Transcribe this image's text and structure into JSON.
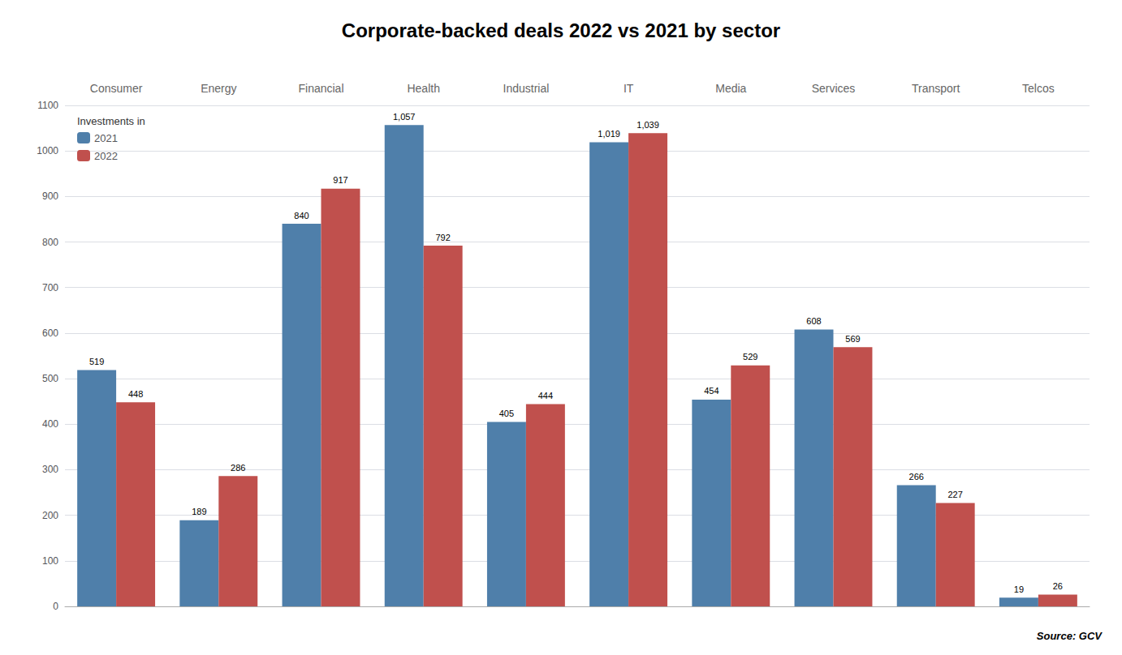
{
  "chart_data": {
    "type": "bar",
    "title": "Corporate-backed deals 2022 vs 2021 by sector",
    "categories": [
      "Consumer",
      "Energy",
      "Financial",
      "Health",
      "Industrial",
      "IT",
      "Media",
      "Services",
      "Transport",
      "Telcos"
    ],
    "series": [
      {
        "name": "2021",
        "color": "#4f7faa",
        "values": [
          519,
          189,
          840,
          1057,
          405,
          1019,
          454,
          608,
          266,
          19
        ],
        "value_labels": [
          "519",
          "189",
          "840",
          "1,057",
          "405",
          "1,019",
          "454",
          "608",
          "266",
          "19"
        ]
      },
      {
        "name": "2022",
        "color": "#c0504d",
        "values": [
          448,
          286,
          917,
          792,
          444,
          1039,
          529,
          569,
          227,
          26
        ],
        "value_labels": [
          "448",
          "286",
          "917",
          "792",
          "444",
          "1,039",
          "529",
          "569",
          "227",
          "26"
        ]
      }
    ],
    "ylim": [
      0,
      1100
    ],
    "yticks": [
      0,
      100,
      200,
      300,
      400,
      500,
      600,
      700,
      800,
      900,
      1000,
      1100
    ],
    "grid": true,
    "legend": "upper left",
    "legend_title": "Investments in",
    "data_labels": true,
    "source": "Source: GCV"
  }
}
